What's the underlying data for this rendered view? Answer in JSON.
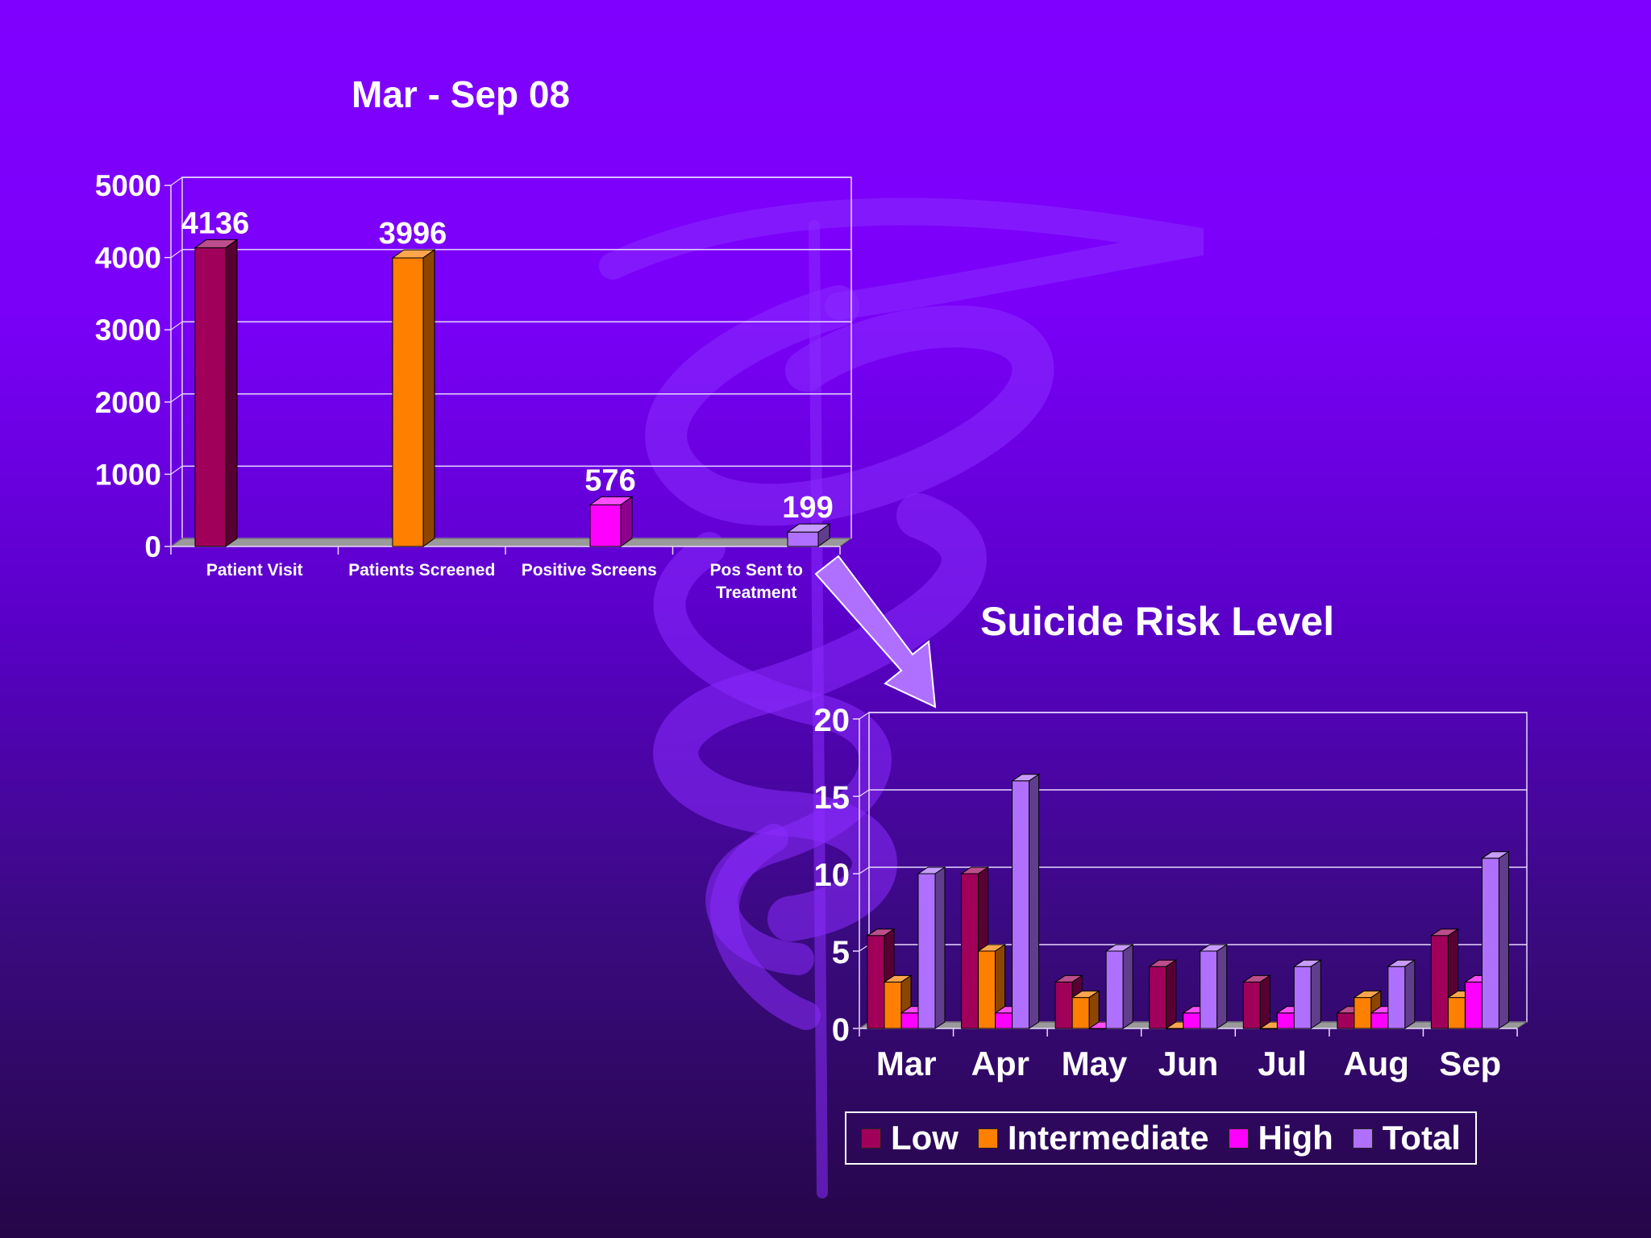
{
  "colors": {
    "low": "#a0005a",
    "intermediate": "#ff8000",
    "high": "#ff00ff",
    "total": "#b070ff",
    "pointer_arrow": "#b070ff",
    "grid": "#e8d8ff",
    "text": "#ffffff"
  },
  "chart_data": [
    {
      "type": "bar",
      "title": "Mar - Sep 08",
      "categories": [
        "Patient Visit",
        "Patients Screened",
        "Positive Screens",
        "Pos Sent to\nTreatment"
      ],
      "values": [
        4136,
        3996,
        576,
        199
      ],
      "bar_colors": [
        "#a0005a",
        "#ff8000",
        "#ff00ff",
        "#b070ff"
      ],
      "ylim": [
        0,
        5000
      ],
      "yticks": [
        0,
        1000,
        2000,
        3000,
        4000,
        5000
      ],
      "grid": true,
      "xlabel": "",
      "ylabel": ""
    },
    {
      "type": "bar",
      "title": "Suicide Risk Level",
      "categories": [
        "Mar",
        "Apr",
        "May",
        "Jun",
        "Jul",
        "Aug",
        "Sep"
      ],
      "series": [
        {
          "name": "Low",
          "values": [
            6,
            10,
            3,
            4,
            3,
            1,
            6
          ]
        },
        {
          "name": "Intermediate",
          "values": [
            3,
            5,
            2,
            0,
            0,
            2,
            2
          ]
        },
        {
          "name": "High",
          "values": [
            1,
            1,
            0,
            1,
            1,
            1,
            3
          ]
        },
        {
          "name": "Total",
          "values": [
            10,
            16,
            5,
            5,
            4,
            4,
            11
          ]
        }
      ],
      "ylim": [
        0,
        20
      ],
      "yticks": [
        0,
        5,
        10,
        15,
        20
      ],
      "grid": true,
      "legend": "bottom",
      "xlabel": "",
      "ylabel": ""
    }
  ]
}
